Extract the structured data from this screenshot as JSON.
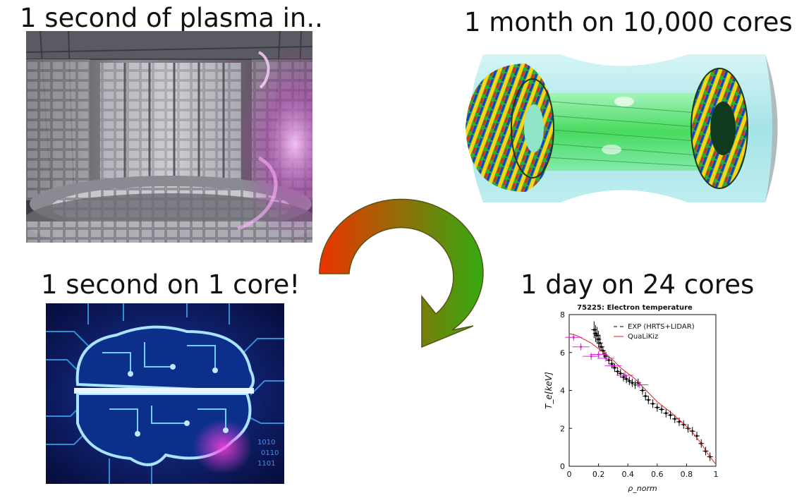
{
  "captions": {
    "top_left": "1 second of plasma in..",
    "top_right": "1 month on 10,000 cores",
    "bottom_left": "1 second on 1 core!",
    "bottom_right": "1 day on 24 cores"
  },
  "icons": {
    "tokamak": "tokamak-interior-photo-icon",
    "torus": "turbulence-torus-simulation-icon",
    "brain": "circuit-brain-icon",
    "arrow": "cycle-arrow-icon"
  },
  "colors": {
    "arrow_start": "#ee3300",
    "arrow_end": "#33aa11",
    "brain_bg": "#07124a",
    "circuit": "#3fb4ff",
    "torus_glass": "#7ad8dc",
    "exp_points": "#000000",
    "model_line": "#dd2222",
    "lidar_points": "#e020e0"
  },
  "chart_data": {
    "type": "line",
    "title": "75225: Electron temperature",
    "xlabel": "ρ_norm",
    "ylabel": "T_e[keV]",
    "xlim": [
      0,
      1
    ],
    "ylim": [
      0,
      8
    ],
    "xticks": [
      "0",
      "0.2",
      "0.4",
      "0.6",
      "0.8",
      "1"
    ],
    "yticks": [
      "0",
      "2",
      "4",
      "6",
      "8"
    ],
    "legend_position": "top-right",
    "grid": false,
    "series": [
      {
        "name": "EXP (HRTS+LIDAR)",
        "style": "points-errorbars",
        "x": [
          0.17,
          0.18,
          0.19,
          0.2,
          0.21,
          0.22,
          0.23,
          0.24,
          0.25,
          0.27,
          0.29,
          0.31,
          0.33,
          0.35,
          0.37,
          0.39,
          0.41,
          0.43,
          0.45,
          0.47,
          0.5,
          0.52,
          0.54,
          0.57,
          0.6,
          0.63,
          0.66,
          0.69,
          0.72,
          0.75,
          0.78,
          0.81,
          0.84,
          0.87,
          0.9,
          0.93,
          0.96
        ],
        "y": [
          7.2,
          7.0,
          6.9,
          6.7,
          6.5,
          6.3,
          6.1,
          5.9,
          5.8,
          5.6,
          5.4,
          5.2,
          5.0,
          4.9,
          4.7,
          4.6,
          4.5,
          4.4,
          4.3,
          4.4,
          4.0,
          3.7,
          3.5,
          3.3,
          3.1,
          3.0,
          2.8,
          2.7,
          2.5,
          2.35,
          2.2,
          2.0,
          1.85,
          1.6,
          1.2,
          0.8,
          0.5
        ]
      },
      {
        "name": "LIDAR",
        "style": "points-errorbars",
        "x": [
          0.03,
          0.08,
          0.15,
          0.2,
          0.25,
          0.3,
          0.38,
          0.48
        ],
        "y": [
          6.8,
          6.3,
          5.8,
          5.9,
          5.7,
          5.3,
          4.8,
          4.3
        ]
      },
      {
        "name": "QuaLiKiz",
        "style": "line",
        "x": [
          0.0,
          0.05,
          0.1,
          0.15,
          0.2,
          0.25,
          0.3,
          0.35,
          0.4,
          0.45,
          0.5,
          0.55,
          0.6,
          0.65,
          0.7,
          0.75,
          0.8,
          0.85,
          0.9,
          0.95,
          1.0
        ],
        "y": [
          7.0,
          6.9,
          6.7,
          6.5,
          6.2,
          5.9,
          5.6,
          5.2,
          4.9,
          4.6,
          4.2,
          3.8,
          3.4,
          3.1,
          2.8,
          2.45,
          2.1,
          1.7,
          1.2,
          0.6,
          0.1
        ]
      }
    ]
  }
}
